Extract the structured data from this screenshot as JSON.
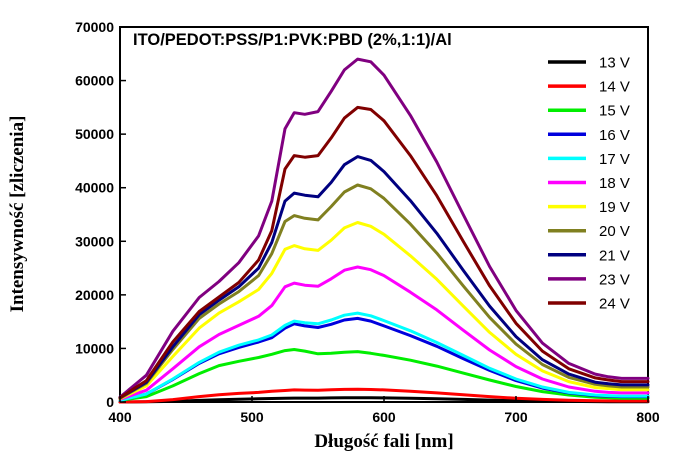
{
  "chart_data": {
    "type": "line",
    "title": "ITO/PEDOT:PSS/P1:PVK:PBD (2%,1:1)/Al",
    "xlabel": "Długość fali [nm]",
    "ylabel": "Intensywność [zliczenia]",
    "xlim": [
      400,
      800
    ],
    "ylim": [
      0,
      70000
    ],
    "xticks": [
      400,
      500,
      600,
      700,
      800
    ],
    "yticks": [
      0,
      10000,
      20000,
      30000,
      40000,
      50000,
      60000,
      70000
    ],
    "legend_position": "top-right",
    "grid": false,
    "x": [
      400,
      420,
      440,
      460,
      475,
      490,
      505,
      515,
      525,
      532,
      540,
      550,
      560,
      570,
      580,
      590,
      600,
      620,
      640,
      660,
      680,
      700,
      720,
      740,
      760,
      770,
      780,
      790,
      800
    ],
    "series": [
      {
        "name": "13 V",
        "color": "#000000",
        "values": [
          0,
          30,
          120,
          300,
          420,
          520,
          600,
          650,
          700,
          730,
          720,
          730,
          760,
          790,
          800,
          790,
          770,
          700,
          600,
          480,
          360,
          250,
          170,
          110,
          70,
          60,
          60,
          60,
          60
        ]
      },
      {
        "name": "14 V",
        "color": "#ff0000",
        "values": [
          0,
          80,
          450,
          1000,
          1350,
          1600,
          1800,
          2000,
          2150,
          2250,
          2230,
          2200,
          2280,
          2350,
          2380,
          2330,
          2250,
          2000,
          1700,
          1350,
          1000,
          700,
          480,
          320,
          220,
          200,
          190,
          190,
          190
        ]
      },
      {
        "name": "15 V",
        "color": "#00ee00",
        "values": [
          300,
          1000,
          3000,
          5300,
          6800,
          7600,
          8300,
          8900,
          9600,
          9800,
          9500,
          9000,
          9100,
          9300,
          9400,
          9100,
          8700,
          7800,
          6700,
          5400,
          4100,
          2900,
          1950,
          1300,
          900,
          800,
          700,
          700,
          700
        ]
      },
      {
        "name": "16 V",
        "color": "#0000dd",
        "values": [
          300,
          1500,
          4200,
          7200,
          9000,
          10200,
          11200,
          12000,
          13800,
          14600,
          14200,
          13900,
          14500,
          15300,
          15600,
          15100,
          14200,
          12400,
          10400,
          8100,
          5900,
          4000,
          2600,
          1700,
          1200,
          1100,
          1000,
          1000,
          1000
        ]
      },
      {
        "name": "17 V",
        "color": "#00ffff",
        "values": [
          300,
          1500,
          4300,
          7400,
          9300,
          10600,
          11600,
          12500,
          14300,
          15100,
          14800,
          14600,
          15300,
          16200,
          16600,
          16100,
          15200,
          13300,
          11100,
          8700,
          6300,
          4300,
          2800,
          1800,
          1300,
          1200,
          1100,
          1100,
          1100
        ]
      },
      {
        "name": "18 V",
        "color": "#ff00ff",
        "values": [
          500,
          2200,
          6200,
          10300,
          12600,
          14300,
          16000,
          18000,
          21500,
          22200,
          21800,
          21600,
          23000,
          24600,
          25200,
          24700,
          23600,
          20500,
          17200,
          13400,
          9700,
          6600,
          4300,
          2800,
          2000,
          1800,
          1700,
          1700,
          1700
        ]
      },
      {
        "name": "19 V",
        "color": "#ffff00",
        "values": [
          600,
          3000,
          8500,
          13800,
          16600,
          18700,
          21000,
          24000,
          28500,
          29200,
          28600,
          28300,
          30200,
          32500,
          33500,
          32800,
          31300,
          27300,
          22900,
          17900,
          13000,
          8900,
          5800,
          3800,
          2700,
          2500,
          2300,
          2300,
          2300
        ]
      },
      {
        "name": "20 V",
        "color": "#808020",
        "values": [
          700,
          3500,
          9800,
          15600,
          18300,
          20600,
          23600,
          27700,
          33700,
          34800,
          34300,
          34000,
          36500,
          39200,
          40500,
          39800,
          38000,
          33200,
          27800,
          21700,
          15800,
          10800,
          7000,
          4600,
          3300,
          3000,
          2800,
          2800,
          2800
        ]
      },
      {
        "name": "21 V",
        "color": "#000080",
        "values": [
          800,
          3700,
          10300,
          16300,
          19000,
          21500,
          25000,
          29800,
          37500,
          39000,
          38600,
          38300,
          41000,
          44300,
          45800,
          45100,
          43000,
          37600,
          31500,
          24600,
          17900,
          12200,
          7900,
          5200,
          3700,
          3400,
          3200,
          3200,
          3200
        ]
      },
      {
        "name": "23 V",
        "color": "#800080",
        "values": [
          900,
          5000,
          13200,
          19500,
          22500,
          26000,
          31000,
          37500,
          51000,
          54000,
          53700,
          54200,
          58000,
          62000,
          64000,
          63500,
          61000,
          53500,
          44800,
          35000,
          25300,
          17100,
          11000,
          7200,
          5200,
          4700,
          4400,
          4400,
          4400
        ]
      },
      {
        "name": "24 V",
        "color": "#800000",
        "values": [
          800,
          4000,
          11200,
          16900,
          19600,
          22300,
          26500,
          32000,
          43500,
          46000,
          45700,
          46000,
          49300,
          53000,
          55000,
          54600,
          52500,
          46000,
          38500,
          30000,
          21700,
          14700,
          9500,
          6200,
          4500,
          4100,
          3800,
          3800,
          3800
        ]
      }
    ]
  }
}
